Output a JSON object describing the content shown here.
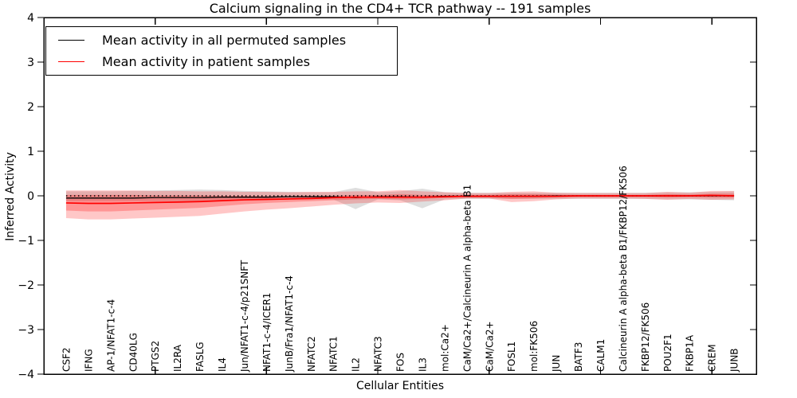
{
  "title": "Calcium signaling in the CD4+ TCR pathway -- 191 samples",
  "axes": {
    "xlabel": "Cellular Entities",
    "ylabel": "Inferred Activity"
  },
  "chart_data": {
    "type": "line",
    "title": "Calcium signaling in the CD4+ TCR pathway -- 191 samples",
    "xlabel": "Cellular Entities",
    "ylabel": "Inferred Activity",
    "xlim": [
      0,
      32
    ],
    "ylim": [
      -4,
      4
    ],
    "yticks": [
      -4,
      -3,
      -2,
      -1,
      0,
      1,
      2,
      3,
      4
    ],
    "xticks_unlabeled": [
      5,
      10,
      15,
      20,
      25,
      30
    ],
    "grid": false,
    "legend_position": "upper left",
    "reference_line_y": 0,
    "categories": [
      "CSF2",
      "IFNG",
      "AP-1/NFAT1-c-4",
      "CD40LG",
      "PTGS2",
      "IL2RA",
      "FASLG",
      "IL4",
      "Jun/NFAT1-c-4/p21SNFT",
      "NFAT1-c-4/ICER1",
      "JunB/Fra1/NFAT1-c-4",
      "NFATC2",
      "NFATC1",
      "IL2",
      "NFATC3",
      "FOS",
      "IL3",
      "mol:Ca2+",
      "CaM/Ca2+/Calcineurin A alpha-beta B1",
      "CaM/Ca2+",
      "FOSL1",
      "mol:FK506",
      "JUN",
      "BATF3",
      "CALM1",
      "Calcineurin A alpha-beta B1/FKBP12/FK506",
      "FKBP12/FK506",
      "POU2F1",
      "FKBP1A",
      "CREM",
      "JUNB"
    ],
    "x": [
      1,
      2,
      3,
      4,
      5,
      6,
      7,
      8,
      9,
      10,
      11,
      12,
      13,
      14,
      15,
      16,
      17,
      18,
      19,
      20,
      21,
      22,
      23,
      24,
      25,
      26,
      27,
      28,
      29,
      30,
      31
    ],
    "series": [
      {
        "name": "Mean activity in all permuted samples",
        "color": "#000000",
        "values": [
          -0.05,
          -0.05,
          -0.05,
          -0.05,
          -0.04,
          -0.04,
          -0.04,
          -0.03,
          -0.03,
          -0.03,
          -0.02,
          -0.02,
          -0.02,
          -0.04,
          -0.02,
          -0.02,
          -0.03,
          -0.01,
          -0.01,
          -0.01,
          -0.01,
          -0.01,
          0,
          0,
          0,
          0,
          0,
          0,
          0,
          0,
          0
        ]
      },
      {
        "name": "Mean activity in patient samples",
        "color": "#ff0000",
        "values": [
          -0.16,
          -0.17,
          -0.17,
          -0.16,
          -0.15,
          -0.14,
          -0.13,
          -0.11,
          -0.09,
          -0.08,
          -0.07,
          -0.06,
          -0.04,
          -0.03,
          -0.03,
          -0.03,
          -0.03,
          -0.02,
          -0.01,
          -0.01,
          -0.01,
          -0.01,
          -0.01,
          0,
          0,
          0,
          0,
          0,
          0,
          0.01,
          0
        ]
      }
    ],
    "bands": [
      {
        "name": "permuted-samples-spread",
        "color": "#000000",
        "opacity": 0.13,
        "upper": [
          0.1,
          0.1,
          0.1,
          0.11,
          0.12,
          0.13,
          0.14,
          0.13,
          0.11,
          0.1,
          0.09,
          0.08,
          0.08,
          0.18,
          0.08,
          0.1,
          0.16,
          0.08,
          0.07,
          0.07,
          0.07,
          0.07,
          0.07,
          0.07,
          0.07,
          0.07,
          0.07,
          0.08,
          0.08,
          0.09,
          0.1
        ],
        "lower": [
          -0.12,
          -0.12,
          -0.12,
          -0.12,
          -0.12,
          -0.12,
          -0.12,
          -0.11,
          -0.1,
          -0.09,
          -0.08,
          -0.08,
          -0.08,
          -0.3,
          -0.08,
          -0.1,
          -0.28,
          -0.08,
          -0.07,
          -0.07,
          -0.07,
          -0.07,
          -0.07,
          -0.07,
          -0.07,
          -0.07,
          -0.07,
          -0.08,
          -0.08,
          -0.09,
          -0.1
        ]
      },
      {
        "name": "patient-samples-spread-outer",
        "color": "#ff0000",
        "opacity": 0.22,
        "upper": [
          0.12,
          0.12,
          0.12,
          0.12,
          0.11,
          0.11,
          0.1,
          0.1,
          0.09,
          0.09,
          0.08,
          0.09,
          0.09,
          0.1,
          0.1,
          0.13,
          0.1,
          0.08,
          0.06,
          0.06,
          0.09,
          0.1,
          0.07,
          0.06,
          0.06,
          0.06,
          0.06,
          0.09,
          0.07,
          0.11,
          0.11
        ],
        "lower": [
          -0.5,
          -0.53,
          -0.53,
          -0.51,
          -0.49,
          -0.47,
          -0.45,
          -0.4,
          -0.35,
          -0.31,
          -0.28,
          -0.24,
          -0.2,
          -0.17,
          -0.15,
          -0.16,
          -0.13,
          -0.1,
          -0.06,
          -0.06,
          -0.14,
          -0.12,
          -0.08,
          -0.06,
          -0.06,
          -0.06,
          -0.07,
          -0.09,
          -0.07,
          -0.09,
          -0.08
        ]
      },
      {
        "name": "patient-samples-spread-inner",
        "color": "#ff0000",
        "opacity": 0.25,
        "upper": [
          0.02,
          0.02,
          0.02,
          0.02,
          0.01,
          0.01,
          0.01,
          0,
          0,
          -0.01,
          -0.01,
          0,
          0,
          0.02,
          0.02,
          0.04,
          0.02,
          0.02,
          0.02,
          0.02,
          0.04,
          0.04,
          0.03,
          0.02,
          0.02,
          0.02,
          0.02,
          0.04,
          0.03,
          0.05,
          0.05
        ],
        "lower": [
          -0.33,
          -0.35,
          -0.35,
          -0.33,
          -0.31,
          -0.29,
          -0.27,
          -0.23,
          -0.19,
          -0.16,
          -0.14,
          -0.12,
          -0.1,
          -0.08,
          -0.07,
          -0.08,
          -0.07,
          -0.05,
          -0.04,
          -0.04,
          -0.07,
          -0.06,
          -0.04,
          -0.03,
          -0.03,
          -0.03,
          -0.03,
          -0.04,
          -0.03,
          -0.04,
          -0.04
        ]
      }
    ]
  }
}
